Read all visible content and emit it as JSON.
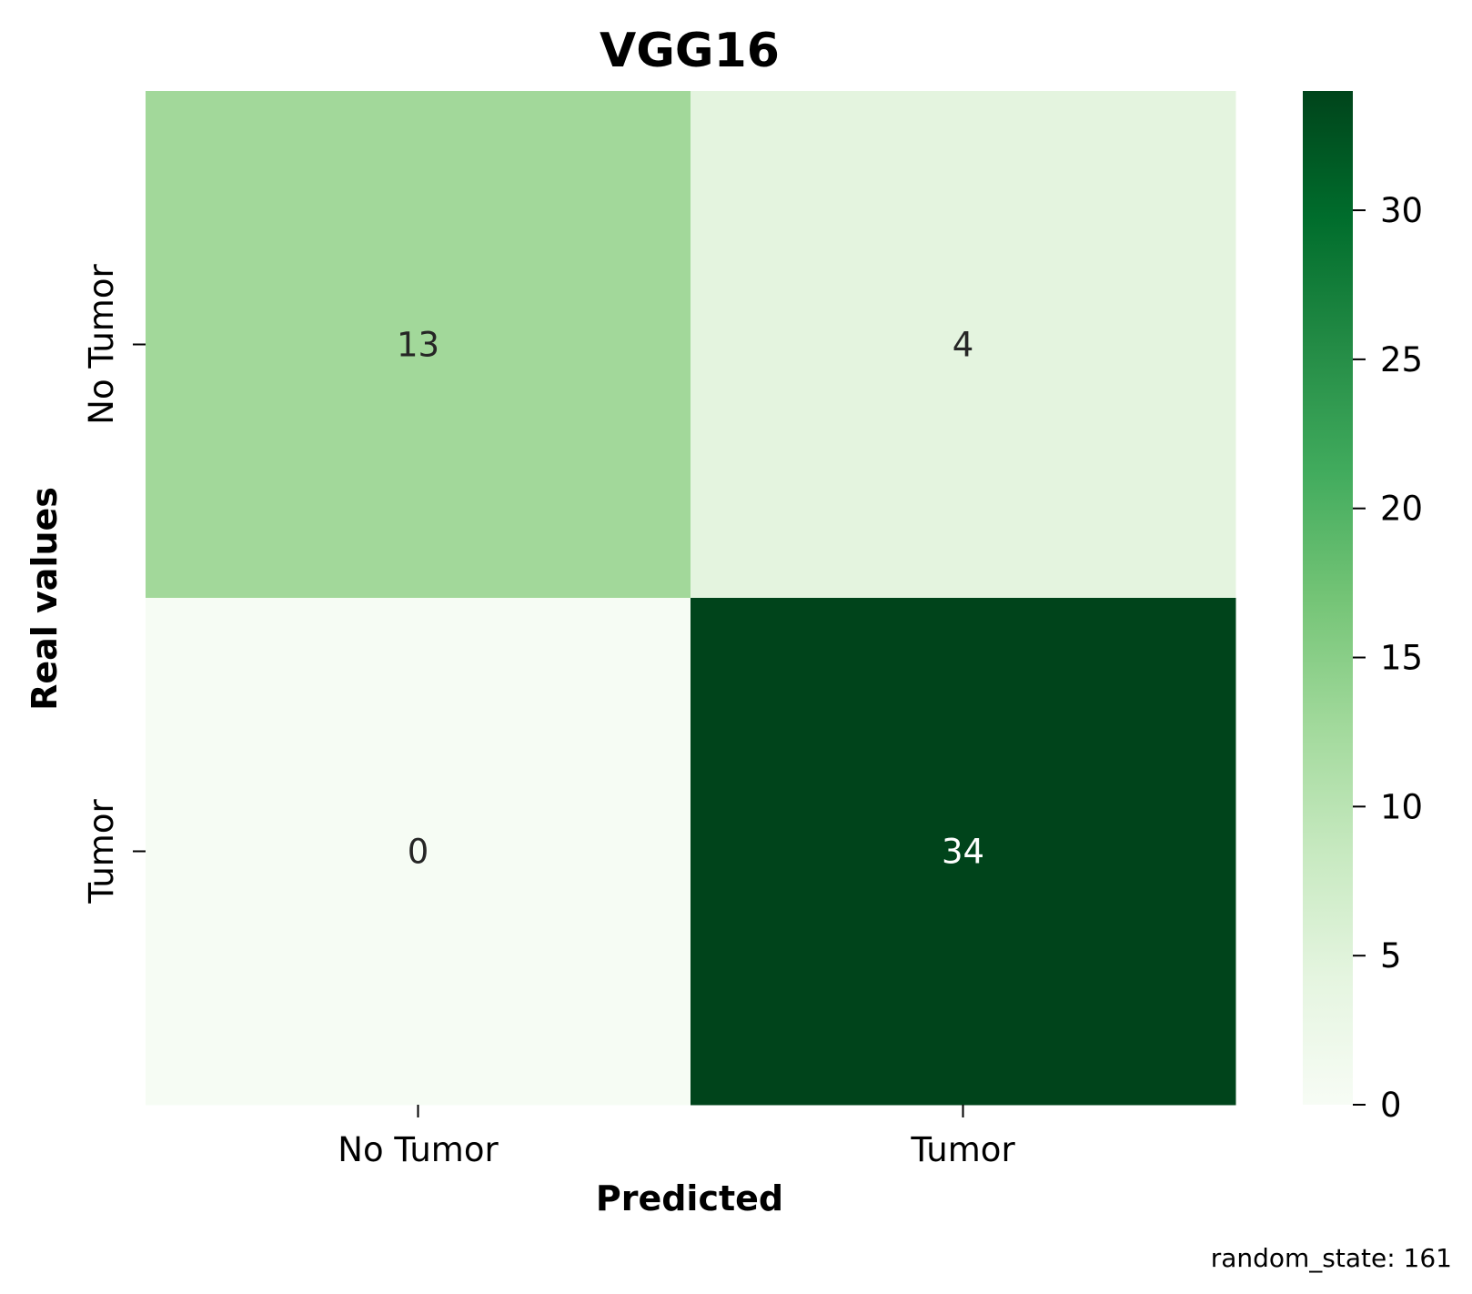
{
  "chart_data": {
    "type": "heatmap",
    "title": "VGG16",
    "xlabel": "Predicted",
    "ylabel": "Real values",
    "x_categories": [
      "No Tumor",
      "Tumor"
    ],
    "y_categories": [
      "No Tumor",
      "Tumor"
    ],
    "values": [
      [
        13,
        4
      ],
      [
        0,
        34
      ]
    ],
    "colorbar": {
      "range": [
        0,
        34
      ],
      "ticks": [
        "0",
        "5",
        "10",
        "15",
        "20",
        "25",
        "30"
      ],
      "colormap": "Greens"
    },
    "footnote": "random_state: 161"
  },
  "colors": {
    "cell_13": "#a2d89a",
    "cell_4": "#e4f4df",
    "cell_0": "#f6fcf4",
    "cell_34": "#00441b",
    "text_dark": "#262626",
    "text_light": "#ffffff"
  }
}
